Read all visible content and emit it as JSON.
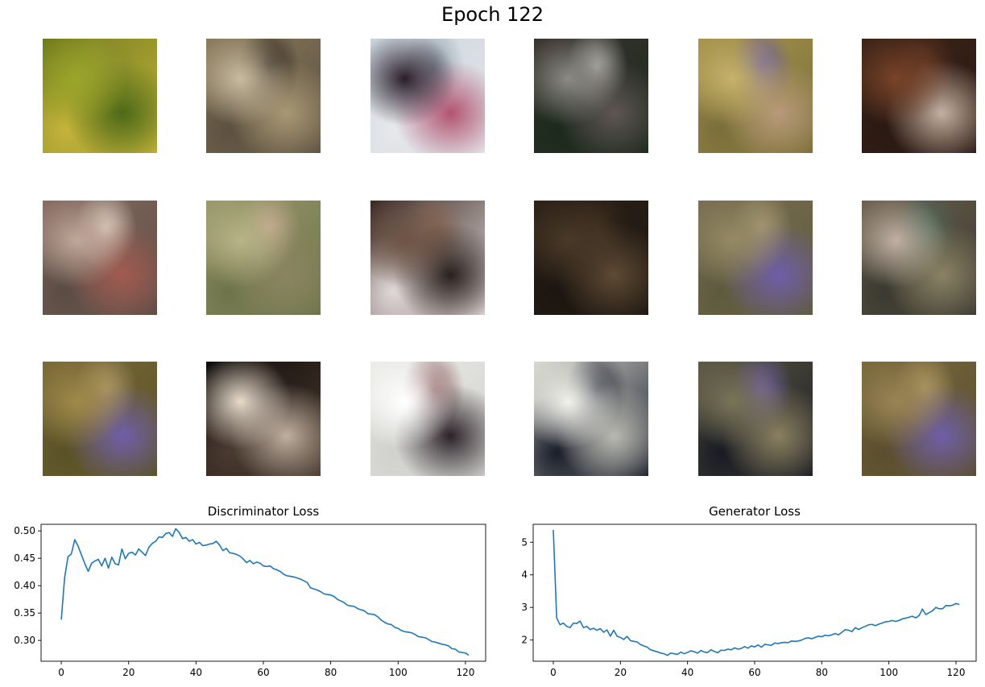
{
  "figure_title": "Epoch 122",
  "samples": [
    {
      "palette": [
        "#6f7a1c",
        "#9aa52a",
        "#c3b33a",
        "#4d6a18",
        "#8c8e2e"
      ]
    },
    {
      "palette": [
        "#8a7b5c",
        "#c9bba0",
        "#5c5140",
        "#a89874",
        "#2e2620"
      ]
    },
    {
      "palette": [
        "#c8d2dc",
        "#2a1e2a",
        "#e6e8ea",
        "#b25470",
        "#8e9aa6"
      ]
    },
    {
      "palette": [
        "#3a3430",
        "#8c8a86",
        "#1c2a1c",
        "#5e5654",
        "#b0aeaa"
      ]
    },
    {
      "palette": [
        "#a8964e",
        "#c6b26a",
        "#7a6e3a",
        "#b89a7a",
        "#6e5ea8"
      ]
    },
    {
      "palette": [
        "#3e2418",
        "#7a4428",
        "#2a1a14",
        "#c4b0a0",
        "#5c3422"
      ]
    },
    {
      "palette": [
        "#8a6e62",
        "#c0a89a",
        "#5a4c44",
        "#a25a50",
        "#e0d0c4"
      ]
    },
    {
      "palette": [
        "#9a9a6c",
        "#b8b488",
        "#6e744a",
        "#8a8460",
        "#c4a890"
      ]
    },
    {
      "palette": [
        "#3a2a24",
        "#6e5444",
        "#e0d8d8",
        "#2a201c",
        "#8a6a58"
      ]
    },
    {
      "palette": [
        "#2e2218",
        "#4a3a28",
        "#1c1610",
        "#5e4a34",
        "#3a2c1e"
      ]
    },
    {
      "palette": [
        "#7a7052",
        "#958a64",
        "#5e5a3e",
        "#6e5ea8",
        "#a89a74"
      ]
    },
    {
      "palette": [
        "#6e6250",
        "#c0b0a4",
        "#3a3a30",
        "#8a8264",
        "#4a6a5a"
      ]
    },
    {
      "palette": [
        "#7a6a38",
        "#a08a4a",
        "#5a5228",
        "#6e5ea8",
        "#b09a6a"
      ]
    },
    {
      "palette": [
        "#0e0a08",
        "#e8dccc",
        "#4a3a30",
        "#c0b0a0",
        "#2a201c"
      ]
    },
    {
      "palette": [
        "#ecece8",
        "#ffffff",
        "#d0d0cc",
        "#2a2228",
        "#8a5a5a"
      ]
    },
    {
      "palette": [
        "#dadad2",
        "#f2f2ec",
        "#1a1e2a",
        "#b8b8b0",
        "#2a2e3a"
      ]
    },
    {
      "palette": [
        "#5e5a44",
        "#7a7458",
        "#1a1c24",
        "#8a8060",
        "#6e5ea8"
      ]
    },
    {
      "palette": [
        "#7a6a3e",
        "#9a8454",
        "#5a4e2e",
        "#6e5ea8",
        "#b09a64"
      ]
    }
  ],
  "chart_data": [
    {
      "type": "line",
      "title": "Discriminator Loss",
      "xlabel": "",
      "ylabel": "",
      "xlim": [
        -6,
        126
      ],
      "ylim": [
        0.262,
        0.512
      ],
      "xticks": [
        0,
        20,
        40,
        60,
        80,
        100,
        120
      ],
      "xtick_labels": [
        "0",
        "20",
        "40",
        "60",
        "80",
        "100",
        "120"
      ],
      "yticks": [
        0.3,
        0.35,
        0.4,
        0.45,
        0.5
      ],
      "ytick_labels": [
        "0.30",
        "0.35",
        "0.40",
        "0.45",
        "0.50"
      ],
      "color": "#1f77b4",
      "x_start": 0,
      "values": [
        0.338,
        0.415,
        0.453,
        0.458,
        0.484,
        0.472,
        0.456,
        0.44,
        0.426,
        0.441,
        0.445,
        0.448,
        0.436,
        0.45,
        0.432,
        0.452,
        0.44,
        0.438,
        0.467,
        0.449,
        0.459,
        0.461,
        0.456,
        0.467,
        0.461,
        0.455,
        0.47,
        0.477,
        0.481,
        0.489,
        0.488,
        0.495,
        0.497,
        0.49,
        0.504,
        0.497,
        0.486,
        0.488,
        0.481,
        0.484,
        0.476,
        0.479,
        0.473,
        0.474,
        0.476,
        0.477,
        0.481,
        0.474,
        0.464,
        0.468,
        0.46,
        0.459,
        0.457,
        0.454,
        0.449,
        0.442,
        0.446,
        0.44,
        0.443,
        0.441,
        0.436,
        0.435,
        0.436,
        0.431,
        0.429,
        0.426,
        0.421,
        0.418,
        0.417,
        0.416,
        0.414,
        0.412,
        0.409,
        0.406,
        0.396,
        0.394,
        0.392,
        0.389,
        0.385,
        0.384,
        0.383,
        0.38,
        0.375,
        0.372,
        0.369,
        0.364,
        0.363,
        0.362,
        0.358,
        0.356,
        0.354,
        0.349,
        0.348,
        0.347,
        0.343,
        0.337,
        0.333,
        0.33,
        0.329,
        0.324,
        0.322,
        0.318,
        0.316,
        0.315,
        0.314,
        0.311,
        0.307,
        0.306,
        0.305,
        0.302,
        0.298,
        0.297,
        0.295,
        0.293,
        0.292,
        0.29,
        0.285,
        0.284,
        0.279,
        0.278,
        0.277,
        0.273
      ]
    },
    {
      "type": "line",
      "title": "Generator Loss",
      "xlabel": "",
      "ylabel": "",
      "xlim": [
        -6,
        126
      ],
      "ylim": [
        1.35,
        5.55
      ],
      "xticks": [
        0,
        20,
        40,
        60,
        80,
        100,
        120
      ],
      "xtick_labels": [
        "0",
        "20",
        "40",
        "60",
        "80",
        "100",
        "120"
      ],
      "yticks": [
        2,
        3,
        4,
        5
      ],
      "ytick_labels": [
        "2",
        "3",
        "4",
        "5"
      ],
      "color": "#1f77b4",
      "x_start": 0,
      "values": [
        5.38,
        2.68,
        2.47,
        2.52,
        2.42,
        2.38,
        2.52,
        2.51,
        2.58,
        2.38,
        2.42,
        2.32,
        2.36,
        2.3,
        2.35,
        2.24,
        2.31,
        2.12,
        2.3,
        2.12,
        2.08,
        2.02,
        2.11,
        1.98,
        1.96,
        1.94,
        1.86,
        1.82,
        1.78,
        1.7,
        1.67,
        1.64,
        1.6,
        1.58,
        1.53,
        1.6,
        1.58,
        1.56,
        1.63,
        1.58,
        1.62,
        1.67,
        1.64,
        1.6,
        1.68,
        1.63,
        1.62,
        1.7,
        1.65,
        1.61,
        1.69,
        1.68,
        1.72,
        1.7,
        1.76,
        1.72,
        1.74,
        1.8,
        1.75,
        1.82,
        1.79,
        1.85,
        1.78,
        1.87,
        1.85,
        1.84,
        1.91,
        1.89,
        1.92,
        1.93,
        1.92,
        1.97,
        1.96,
        1.97,
        2.0,
        2.05,
        2.07,
        2.04,
        2.08,
        2.12,
        2.1,
        2.15,
        2.13,
        2.16,
        2.2,
        2.16,
        2.24,
        2.32,
        2.3,
        2.26,
        2.38,
        2.32,
        2.38,
        2.42,
        2.47,
        2.48,
        2.44,
        2.49,
        2.52,
        2.56,
        2.57,
        2.6,
        2.57,
        2.6,
        2.65,
        2.67,
        2.7,
        2.73,
        2.68,
        2.75,
        2.95,
        2.78,
        2.84,
        2.9,
        3.0,
        2.96,
        2.96,
        3.06,
        3.05,
        3.07,
        3.12,
        3.09
      ]
    }
  ]
}
